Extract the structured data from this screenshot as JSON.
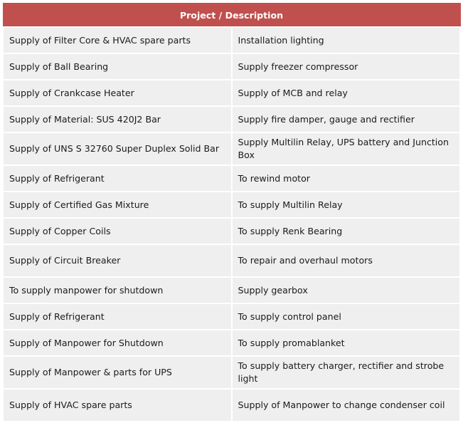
{
  "table": {
    "header": "Project / Description",
    "rows": [
      [
        "Supply of Filter Core & HVAC spare parts",
        "Installation lighting"
      ],
      [
        "Supply of Ball Bearing",
        "Supply freezer compressor"
      ],
      [
        "Supply of Crankcase Heater",
        "Supply of MCB and relay"
      ],
      [
        "Supply of Material: SUS 420J2 Bar",
        "Supply fire damper, gauge and rectifier"
      ],
      [
        "Supply of UNS S 32760 Super Duplex Solid Bar",
        "Supply Multilin Relay, UPS battery and Junction Box"
      ],
      [
        "Supply of Refrigerant",
        "To rewind motor"
      ],
      [
        "Supply of Certified Gas Mixture",
        "To supply Multilin Relay"
      ],
      [
        "Supply of Copper Coils",
        "To supply Renk Bearing"
      ],
      [
        "Supply of Circuit Breaker",
        "To repair and  overhaul motors"
      ],
      [
        "To supply manpower for shutdown",
        "Supply gearbox"
      ],
      [
        "Supply of Refrigerant",
        "To supply control panel"
      ],
      [
        "Supply of Manpower for Shutdown",
        "To supply promablanket"
      ],
      [
        "Supply of Manpower & parts for UPS",
        "To supply battery charger, rectifier and strobe light"
      ],
      [
        "Supply of HVAC spare parts",
        "Supply of Manpower to change condenser coil"
      ]
    ]
  },
  "colors": {
    "header_bg": "#c0504d",
    "cell_bg": "#efefef"
  }
}
